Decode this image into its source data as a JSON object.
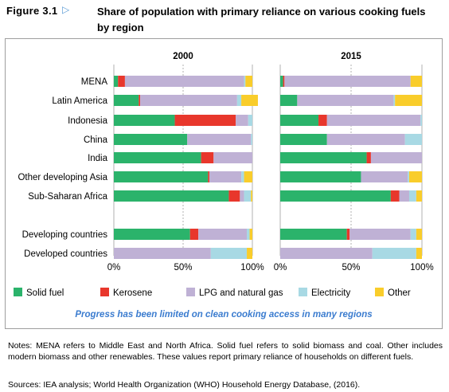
{
  "figure": {
    "number": "Figure 3.1",
    "arrow": "▷",
    "title": "Share of population with primary reliance on various cooking fuels by region"
  },
  "caption": "Progress has been limited on clean cooking access in many regions",
  "notes": "Notes: MENA refers to Middle East and North Africa. Solid fuel refers to solid biomass and coal. Other includes modern biomass and other renewables. These values report primary reliance of households on different fuels.",
  "sources": "Sources: IEA analysis; World Health Organization (WHO) Household Energy Database, (2016).",
  "colors": {
    "solid_fuel": "#2bb36b",
    "kerosene": "#e8372c",
    "lpg": "#bfb1d5",
    "electricity": "#a8d9e4",
    "other": "#f9cd2b",
    "grid": "#9e9e9e"
  },
  "chart_data": {
    "type": "bar",
    "orientation": "horizontal",
    "stacked": true,
    "panels": [
      "2000",
      "2015"
    ],
    "categories": [
      "MENA",
      "Latin America",
      "Indonesia",
      "China",
      "India",
      "Other developing Asia",
      "Sub-Saharan Africa",
      "Developing countries",
      "Developed countries"
    ],
    "xlim": [
      0,
      100
    ],
    "xticks": [
      "0%",
      "50%",
      "100%"
    ],
    "grid": true,
    "legend_position": "bottom",
    "series": [
      {
        "name": "Solid fuel",
        "color": "#2bb36b",
        "values_2000": [
          3,
          18,
          44,
          53,
          63,
          68,
          83,
          55,
          0
        ],
        "values_2015": [
          2,
          12,
          27,
          33,
          61,
          57,
          78,
          47,
          0
        ]
      },
      {
        "name": "Kerosene",
        "color": "#e8372c",
        "values_2000": [
          5,
          1,
          44,
          0,
          9,
          1,
          8,
          6,
          0
        ],
        "values_2015": [
          1,
          0,
          6,
          0,
          3,
          0,
          6,
          2,
          0
        ]
      },
      {
        "name": "LPG and natural gas",
        "color": "#bfb1d5",
        "values_2000": [
          86,
          70,
          9,
          46,
          28,
          23,
          3,
          35,
          70
        ],
        "values_2015": [
          89,
          68,
          66,
          55,
          36,
          33,
          7,
          43,
          65
        ]
      },
      {
        "name": "Electricity",
        "color": "#a8d9e4",
        "values_2000": [
          1,
          3,
          3,
          1,
          0,
          2,
          5,
          2,
          26
        ],
        "values_2015": [
          0,
          1,
          1,
          12,
          0,
          1,
          5,
          4,
          31
        ]
      },
      {
        "name": "Other",
        "color": "#f9cd2b",
        "values_2000": [
          5,
          12,
          0,
          0,
          0,
          6,
          1,
          2,
          4
        ],
        "values_2015": [
          8,
          19,
          0,
          0,
          0,
          9,
          4,
          4,
          4
        ]
      }
    ]
  }
}
